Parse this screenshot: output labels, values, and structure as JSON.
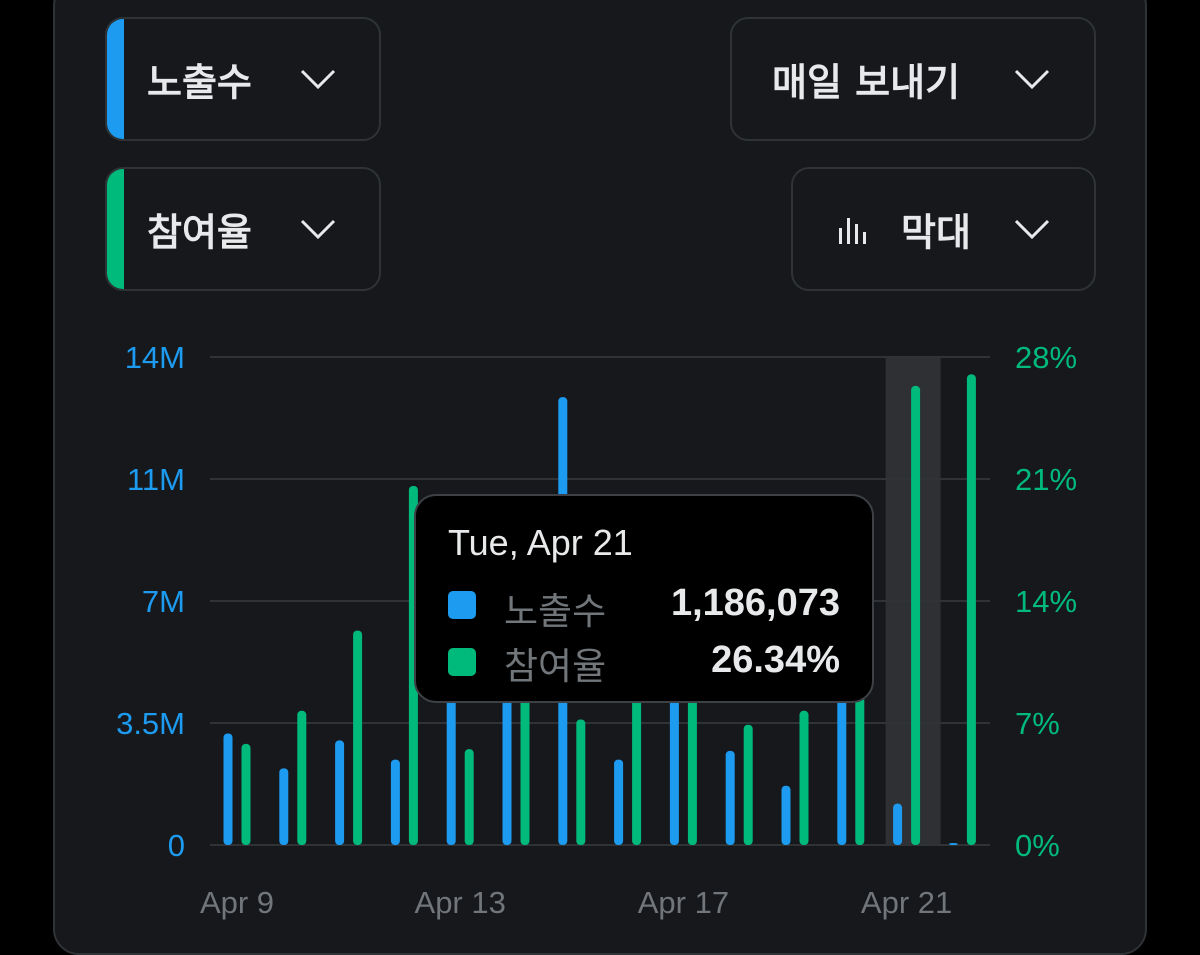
{
  "controls": {
    "metric1": {
      "label": "노출수",
      "color": "#1d9bf0"
    },
    "metric2": {
      "label": "참여율",
      "color": "#00ba7c"
    },
    "frequency": {
      "label": "매일 보내기"
    },
    "chart_type": {
      "label": "막대",
      "icon": "bar-chart-icon"
    }
  },
  "tooltip": {
    "date": "Tue, Apr 21",
    "rows": [
      {
        "name": "노출수",
        "value": "1,186,073"
      },
      {
        "name": "참여율",
        "value": "26.34%"
      }
    ]
  },
  "chart_data": {
    "type": "bar",
    "categories": [
      "Apr 9",
      "Apr 10",
      "Apr 11",
      "Apr 12",
      "Apr 13",
      "Apr 14",
      "Apr 15",
      "Apr 16",
      "Apr 17",
      "Apr 18",
      "Apr 19",
      "Apr 20",
      "Apr 21",
      "Apr 22"
    ],
    "x_ticks": [
      "Apr 9",
      "Apr 13",
      "Apr 17",
      "Apr 21"
    ],
    "highlighted_category": "Apr 21",
    "y_left": {
      "ticks": [
        "0",
        "3.5M",
        "7M",
        "11M",
        "14M"
      ],
      "range": [
        0,
        14000000
      ],
      "color": "#1d9bf0"
    },
    "y_right": {
      "ticks": [
        "0%",
        "7%",
        "14%",
        "21%",
        "28%"
      ],
      "range": [
        0,
        28
      ],
      "color": "#00ba7c"
    },
    "series": [
      {
        "name": "노출수",
        "axis": "left",
        "color": "#1d9bf0",
        "values": [
          3200000,
          2200000,
          3000000,
          2450000,
          4500000,
          8200000,
          12850000,
          2450000,
          5300000,
          2700000,
          1700000,
          4200000,
          1186073,
          50000
        ]
      },
      {
        "name": "참여율",
        "axis": "right",
        "color": "#00ba7c",
        "values": [
          5.8,
          7.7,
          12.3,
          20.6,
          5.5,
          8.6,
          7.2,
          12.4,
          11.1,
          6.9,
          7.7,
          8.7,
          26.34,
          27.0
        ]
      }
    ],
    "grid": true,
    "legend": "none"
  }
}
